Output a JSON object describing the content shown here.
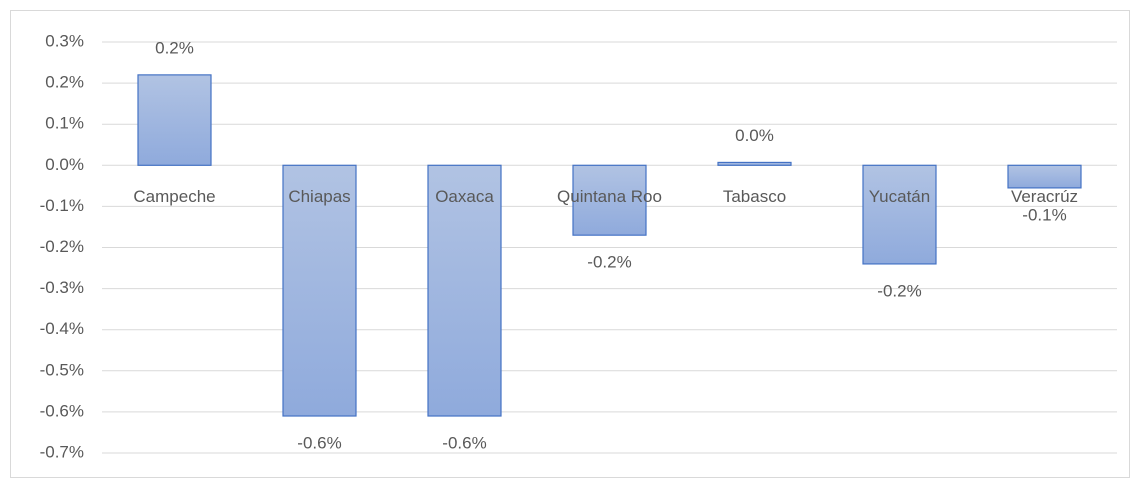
{
  "chart_data": {
    "type": "bar",
    "categories": [
      "Campeche",
      "Chiapas",
      "Oaxaca",
      "Quintana Roo",
      "Tabasco",
      "Yucatán",
      "Veracrúz"
    ],
    "values": [
      0.22,
      -0.61,
      -0.61,
      -0.17,
      0.007,
      -0.24,
      -0.055
    ],
    "value_labels": [
      "0.2%",
      "-0.6%",
      "-0.6%",
      "-0.2%",
      "0.0%",
      "-0.2%",
      "-0.1%"
    ],
    "color": "#8faadc",
    "ylim": [
      -0.7,
      0.3
    ],
    "yticks": [
      {
        "value": -0.7,
        "label": "-0.7%"
      },
      {
        "value": -0.6,
        "label": "-0.6%"
      },
      {
        "value": -0.5,
        "label": "-0.5%"
      },
      {
        "value": -0.4,
        "label": "-0.4%"
      },
      {
        "value": -0.3,
        "label": "-0.3%"
      },
      {
        "value": -0.2,
        "label": "-0.2%"
      },
      {
        "value": -0.1,
        "label": "-0.1%"
      },
      {
        "value": 0,
        "label": "0.0%"
      },
      {
        "value": 0.1,
        "label": "0.1%"
      },
      {
        "value": 0.2,
        "label": "0.2%"
      },
      {
        "value": 0.3,
        "label": "0.3%"
      }
    ],
    "grid": true
  }
}
